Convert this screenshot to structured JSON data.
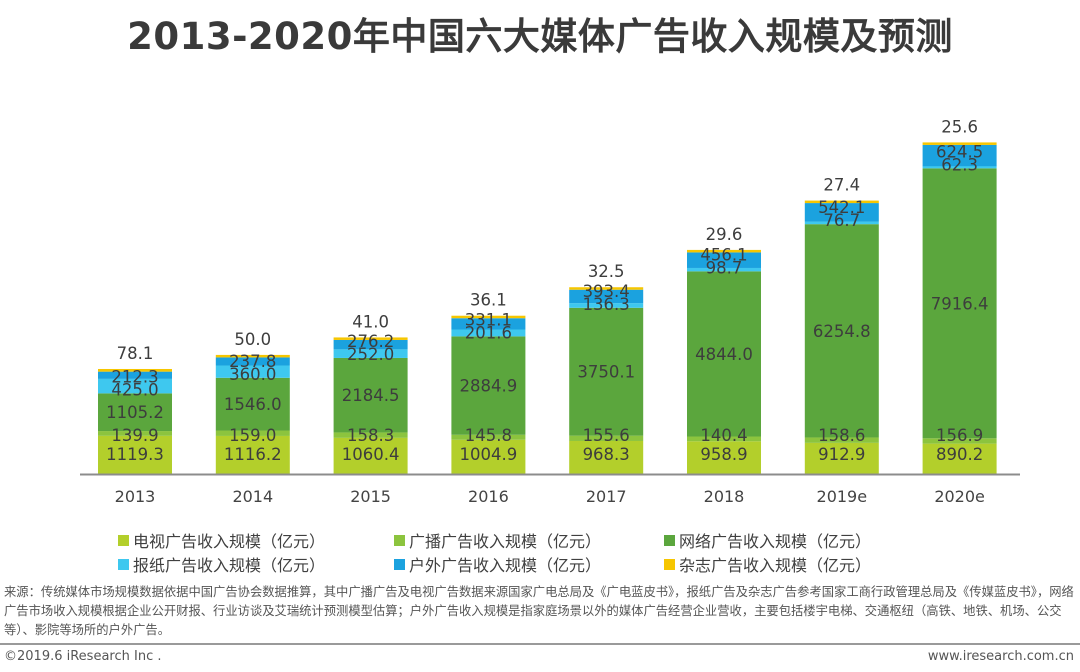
{
  "title": "2013-2020年中国六大媒体广告收入规模及预测",
  "chart_data": {
    "type": "bar",
    "stacked": true,
    "title": "2013-2020年中国六大媒体广告收入规模及预测",
    "xlabel": "",
    "ylabel": "",
    "categories": [
      "2013",
      "2014",
      "2015",
      "2016",
      "2017",
      "2018",
      "2019e",
      "2020e"
    ],
    "series": [
      {
        "name": "电视广告收入规模（亿元）",
        "color": "#b3cf2b",
        "values": [
          1119.3,
          1116.2,
          1060.4,
          1004.9,
          968.3,
          958.9,
          912.9,
          890.2
        ]
      },
      {
        "name": "广播广告收入规模（亿元）",
        "color": "#8cc43e",
        "values": [
          139.9,
          159.0,
          158.3,
          145.8,
          155.6,
          140.4,
          158.6,
          156.9
        ]
      },
      {
        "name": "网络广告收入规模（亿元）",
        "color": "#5ba63d",
        "values": [
          1105.2,
          1546.0,
          2184.5,
          2884.9,
          3750.1,
          4844.0,
          6254.8,
          7916.4
        ]
      },
      {
        "name": "报纸广告收入规模（亿元）",
        "color": "#3ec8ef",
        "values": [
          425.0,
          360.0,
          252.0,
          201.6,
          136.3,
          98.7,
          76.7,
          62.3
        ]
      },
      {
        "name": "户外广告收入规模（亿元）",
        "color": "#1ba2df",
        "values": [
          212.3,
          237.8,
          276.2,
          331.1,
          393.4,
          456.1,
          542.1,
          624.5
        ]
      },
      {
        "name": "杂志广告收入规模（亿元）",
        "color": "#f6c600",
        "values": [
          78.1,
          50.0,
          41.0,
          36.1,
          32.5,
          29.6,
          27.4,
          25.6
        ]
      }
    ],
    "grid": false,
    "legend_position": "bottom",
    "axis_color": "#8c8c8c",
    "label_color": "#3d3d3d"
  },
  "legend": [
    {
      "label": "电视广告收入规模（亿元）",
      "color": "#b3cf2b"
    },
    {
      "label": "广播广告收入规模（亿元）",
      "color": "#8cc43e"
    },
    {
      "label": "网络广告收入规模（亿元）",
      "color": "#5ba63d"
    },
    {
      "label": "报纸广告收入规模（亿元）",
      "color": "#3ec8ef"
    },
    {
      "label": "户外广告收入规模（亿元）",
      "color": "#1ba2df"
    },
    {
      "label": "杂志广告收入规模（亿元）",
      "color": "#f6c600"
    }
  ],
  "footer": {
    "source": "来源：传统媒体市场规模数据依据中国广告协会数据推算，其中广播广告及电视广告数据来源国家广电总局及《广电蓝皮书》，报纸广告及杂志广告参考国家工商行政管理总局及《传媒蓝皮书》，网络广告市场收入规模根据企业公开财报、行业访谈及艾瑞统计预测模型估算；户外广告收入规模是指家庭场景以外的媒体广告经营企业营收，主要包括楼宇电梯、交通枢纽（高铁、地铁、机场、公交等）、影院等场所的户外广告。",
    "copyright": "©2019.6 iResearch Inc .",
    "website": "www.iresearch.com.cn"
  }
}
